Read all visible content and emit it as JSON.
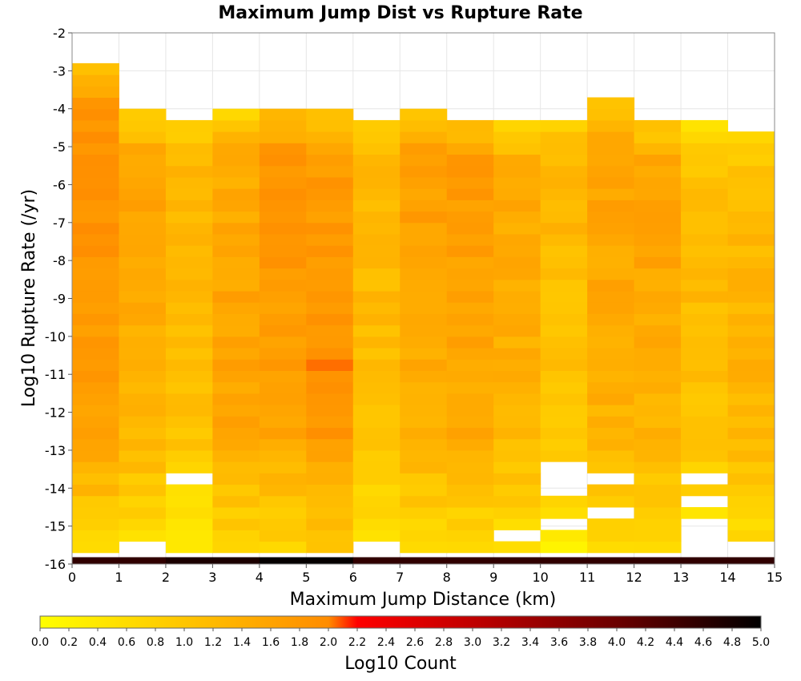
{
  "chart_data": {
    "type": "heatmap",
    "title": "Maximum Jump Dist vs Rupture Rate",
    "xlabel": "Maximum Jump Distance (km)",
    "ylabel": "Log10 Rupture Rate (/yr)",
    "xlim": [
      0,
      15
    ],
    "ylim": [
      -16,
      -2
    ],
    "x_ticks": [
      "0",
      "1",
      "2",
      "3",
      "4",
      "5",
      "6",
      "7",
      "8",
      "9",
      "10",
      "11",
      "12",
      "13",
      "14",
      "15"
    ],
    "y_ticks": [
      "-2",
      "-3",
      "-4",
      "-5",
      "-6",
      "-7",
      "-8",
      "-9",
      "-10",
      "-11",
      "-12",
      "-13",
      "-14",
      "-15",
      "-16"
    ],
    "x_bin_width": 1,
    "y_bin_height": 0.3,
    "y_bin_start": -16,
    "n_y_bins": 47,
    "colorbar": {
      "label": "Log10 Count",
      "min": 0.0,
      "max": 5.0,
      "tick_labels": [
        "0.0",
        "0.2",
        "0.4",
        "0.6",
        "0.8",
        "1.0",
        "1.2",
        "1.4",
        "1.6",
        "1.8",
        "2.0",
        "2.2",
        "2.4",
        "2.6",
        "2.8",
        "3.0",
        "3.2",
        "3.4",
        "3.6",
        "3.8",
        "4.0",
        "4.2",
        "4.4",
        "4.6",
        "4.8",
        "5.0"
      ],
      "colors": [
        "#ffff00",
        "#ff8c00",
        "#ff0000",
        "#8b0000",
        "#000000"
      ]
    },
    "bottom_row_log10_count": [
      4.55,
      4.55,
      4.75,
      4.75,
      4.95,
      4.95,
      4.55,
      4.55,
      4.55,
      4.55,
      4.55,
      4.55,
      4.55,
      4.55,
      4.55
    ],
    "columns": [
      {
        "x": 0.5,
        "y_top": -2.7,
        "empty_y": [],
        "peak_log10_count": 1.9,
        "peak_y": -5.5
      },
      {
        "x": 1.5,
        "y_top": -3.9,
        "empty_y": [
          -15.7
        ],
        "peak_log10_count": 1.55,
        "peak_y": -6.8
      },
      {
        "x": 2.5,
        "y_top": -4.2,
        "empty_y": [
          -13.9
        ],
        "peak_log10_count": 1.35,
        "peak_y": -4.9
      },
      {
        "x": 3.5,
        "y_top": -3.9,
        "empty_y": [],
        "peak_log10_count": 1.6,
        "peak_y": -10.0
      },
      {
        "x": 4.5,
        "y_top": -3.9,
        "empty_y": [],
        "peak_log10_count": 1.85,
        "peak_y": -6.2
      },
      {
        "x": 5.5,
        "y_top": -3.9,
        "empty_y": [],
        "peak_log10_count": 1.9,
        "peak_y": -10.0
      },
      {
        "x": 6.5,
        "y_top": -4.2,
        "empty_y": [
          -15.7
        ],
        "peak_log10_count": 1.3,
        "peak_y": -6.8
      },
      {
        "x": 7.5,
        "y_top": -3.9,
        "empty_y": [],
        "peak_log10_count": 1.65,
        "peak_y": -6.8
      },
      {
        "x": 8.5,
        "y_top": -4.2,
        "empty_y": [],
        "peak_log10_count": 1.75,
        "peak_y": -5.8
      },
      {
        "x": 9.5,
        "y_top": -4.2,
        "empty_y": [
          -15.4
        ],
        "peak_log10_count": 1.5,
        "peak_y": -7.6
      },
      {
        "x": 10.5,
        "y_top": -4.2,
        "empty_y": [
          -13.6,
          -13.9,
          -14.2,
          -15.1
        ],
        "peak_log10_count": 1.3,
        "peak_y": -5.2
      },
      {
        "x": 11.5,
        "y_top": -3.6,
        "empty_y": [
          -13.9,
          -14.8
        ],
        "peak_log10_count": 1.6,
        "peak_y": -6.2
      },
      {
        "x": 12.5,
        "y_top": -4.2,
        "empty_y": [],
        "peak_log10_count": 1.6,
        "peak_y": -6.5
      },
      {
        "x": 13.5,
        "y_top": -4.2,
        "empty_y": [
          -13.9,
          -14.5,
          -15.1,
          -15.4,
          -15.7
        ],
        "peak_log10_count": 1.2,
        "peak_y": -8.8
      },
      {
        "x": 14.5,
        "y_top": -4.5,
        "empty_y": [
          -15.7
        ],
        "peak_log10_count": 1.35,
        "peak_y": -10.0
      }
    ]
  }
}
